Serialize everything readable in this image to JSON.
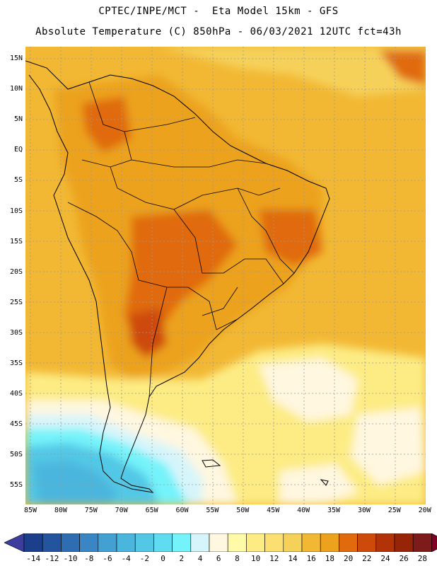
{
  "header": {
    "line1": "CPTEC/INPE/MCT -  Eta Model 15km - GFS",
    "line2": "Absolute Temperature (C) 850hPa - 06/03/2021 12UTC fct=43h"
  },
  "map": {
    "region": "South America",
    "variable": "Absolute Temperature (C)",
    "level": "850hPa",
    "lat_labels": [
      "15N",
      "10N",
      "5N",
      "EQ",
      "5S",
      "10S",
      "15S",
      "20S",
      "25S",
      "30S",
      "35S",
      "40S",
      "45S",
      "50S",
      "55S"
    ],
    "lon_labels": [
      "85W",
      "80W",
      "75W",
      "70W",
      "65W",
      "60W",
      "55W",
      "50W",
      "45W",
      "40W",
      "35W",
      "30W",
      "25W",
      "20W"
    ]
  },
  "colorbar": {
    "labels": [
      "-14",
      "-12",
      "-10",
      "-8",
      "-6",
      "-4",
      "-2",
      "0",
      "2",
      "4",
      "6",
      "8",
      "10",
      "12",
      "14",
      "16",
      "18",
      "20",
      "22",
      "24",
      "26",
      "28"
    ],
    "colors": [
      "#1b3f8a",
      "#24549e",
      "#2f6db3",
      "#3a86c4",
      "#43a0d3",
      "#4bb6dd",
      "#53c8e6",
      "#5fdcf0",
      "#74f3fa",
      "#d6f5fb",
      "#fff7e0",
      "#fffaa8",
      "#fdec84",
      "#fbe071",
      "#f6d15a",
      "#f2b834",
      "#eca21c",
      "#e06a0c",
      "#cd4a0a",
      "#b23308",
      "#962406",
      "#7d1b1b"
    ],
    "colors_legend": [
      "under:#3d3d9e",
      "over:#820026"
    ]
  }
}
